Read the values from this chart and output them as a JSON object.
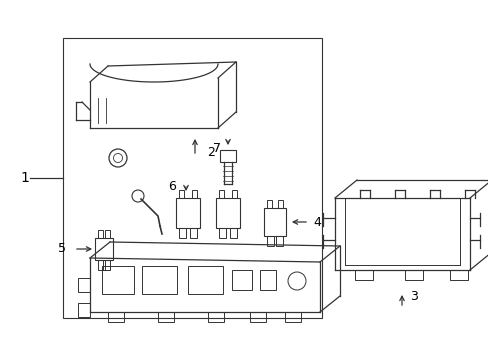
{
  "bg_color": "#ffffff",
  "line_color": "#333333",
  "text_color": "#000000",
  "fig_width": 4.89,
  "fig_height": 3.6,
  "dpi": 100
}
